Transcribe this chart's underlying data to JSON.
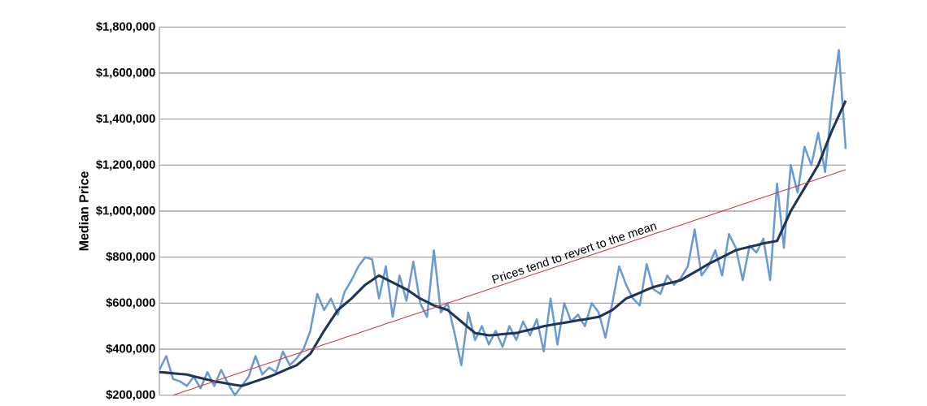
{
  "chart_data": {
    "type": "line",
    "ylabel": "Median Price",
    "categories": [
      null,
      null,
      null,
      null,
      null,
      null,
      null,
      null,
      null,
      null,
      null,
      null,
      null,
      null,
      null,
      null,
      null,
      null,
      null,
      null,
      null,
      null,
      null,
      null,
      null,
      null,
      null,
      null,
      null,
      null,
      null,
      null,
      null,
      null,
      null,
      null,
      null,
      null,
      null,
      null,
      null,
      null,
      null,
      null,
      null,
      null,
      null,
      null,
      null,
      null,
      null,
      null,
      null,
      null,
      null,
      null,
      null,
      null,
      null,
      null,
      null,
      null,
      null,
      null,
      null,
      null,
      null,
      null,
      null,
      null,
      null,
      null,
      null,
      null,
      null,
      null,
      null,
      null,
      null,
      null,
      null,
      null,
      null,
      null,
      null,
      null,
      null,
      null,
      null,
      null,
      null,
      null,
      null,
      null,
      null,
      null,
      null,
      null,
      null,
      null,
      null
    ],
    "series": [
      {
        "color": "#6a9ad4",
        "values": [
          310000,
          370000,
          270000,
          260000,
          240000,
          280000,
          230000,
          300000,
          240000,
          310000,
          250000,
          200000,
          240000,
          280000,
          370000,
          290000,
          320000,
          300000,
          390000,
          330000,
          360000,
          400000,
          480000,
          640000,
          570000,
          620000,
          550000,
          650000,
          700000,
          760000,
          800000,
          790000,
          620000,
          760000,
          540000,
          720000,
          610000,
          780000,
          600000,
          540000,
          830000,
          560000,
          600000,
          470000,
          330000,
          560000,
          440000,
          500000,
          420000,
          480000,
          410000,
          500000,
          440000,
          520000,
          460000,
          530000,
          390000,
          620000,
          420000,
          600000,
          520000,
          550000,
          500000,
          600000,
          560000,
          450000,
          600000,
          760000,
          680000,
          620000,
          590000,
          770000,
          660000,
          640000,
          720000,
          680000,
          710000,
          760000,
          920000,
          720000,
          760000,
          830000,
          720000,
          900000,
          840000,
          700000,
          850000,
          820000,
          880000,
          700000,
          1120000,
          840000,
          1200000,
          1080000,
          1280000,
          1200000,
          1340000,
          1170000,
          1470000,
          1700000,
          1270000
        ]
      },
      {
        "color": "#1f3556",
        "values": [
          300000,
          298000,
          295000,
          292000,
          290000,
          282000,
          275000,
          268000,
          260000,
          255000,
          250000,
          245000,
          240000,
          250000,
          260000,
          270000,
          280000,
          292000,
          305000,
          318000,
          330000,
          355000,
          380000,
          430000,
          480000,
          525000,
          570000,
          595000,
          620000,
          650000,
          680000,
          700000,
          720000,
          705000,
          690000,
          675000,
          660000,
          640000,
          620000,
          605000,
          590000,
          580000,
          570000,
          545000,
          520000,
          495000,
          470000,
          465000,
          460000,
          462000,
          465000,
          468000,
          470000,
          478000,
          485000,
          492000,
          500000,
          505000,
          510000,
          515000,
          520000,
          525000,
          530000,
          535000,
          540000,
          555000,
          570000,
          595000,
          620000,
          632000,
          645000,
          658000,
          670000,
          678000,
          685000,
          692000,
          700000,
          718000,
          735000,
          752000,
          770000,
          785000,
          800000,
          815000,
          830000,
          838000,
          845000,
          852000,
          860000,
          865000,
          870000,
          935000,
          1000000,
          1050000,
          1100000,
          1150000,
          1200000,
          1275000,
          1350000,
          1415000,
          1480000
        ]
      },
      {
        "color": "#d03a3a",
        "values": [
          null,
          null,
          200000,
          210000,
          220000,
          230000,
          240000,
          250000,
          260000,
          270000,
          280000,
          290000,
          300000,
          310000,
          320000,
          330000,
          340000,
          350000,
          360000,
          370000,
          380000,
          390000,
          400000,
          410000,
          420000,
          430000,
          440000,
          450000,
          460000,
          470000,
          480000,
          490000,
          500000,
          510000,
          520000,
          530000,
          540000,
          550000,
          560000,
          570000,
          580000,
          590000,
          600000,
          610000,
          620000,
          630000,
          640000,
          650000,
          660000,
          670000,
          680000,
          690000,
          700000,
          710000,
          720000,
          730000,
          740000,
          750000,
          760000,
          770000,
          780000,
          790000,
          800000,
          810000,
          820000,
          830000,
          840000,
          850000,
          860000,
          870000,
          880000,
          890000,
          900000,
          910000,
          920000,
          930000,
          940000,
          950000,
          960000,
          970000,
          980000,
          990000,
          1000000,
          1010000,
          1020000,
          1030000,
          1040000,
          1050000,
          1060000,
          1070000,
          1080000,
          1090000,
          1100000,
          1110000,
          1120000,
          1130000,
          1140000,
          1150000,
          1160000,
          1170000,
          1180000
        ]
      }
    ],
    "ylim": [
      200000,
      1800000
    ],
    "yticks": [
      {
        "value": 200000,
        "label": "$200,000"
      },
      {
        "value": 400000,
        "label": "$400,000"
      },
      {
        "value": 600000,
        "label": "$600,000"
      },
      {
        "value": 800000,
        "label": "$800,000"
      },
      {
        "value": 1000000,
        "label": "$1,000,000"
      },
      {
        "value": 1200000,
        "label": "$1,200,000"
      },
      {
        "value": 1400000,
        "label": "$1,400,000"
      },
      {
        "value": 1600000,
        "label": "$1,600,000"
      },
      {
        "value": 1800000,
        "label": "$1,800,000"
      }
    ],
    "grid": "y",
    "tick_labels": "y",
    "marker": "none",
    "line_style": "solid",
    "annotations": [
      "Prices tend to revert to the mean"
    ]
  }
}
